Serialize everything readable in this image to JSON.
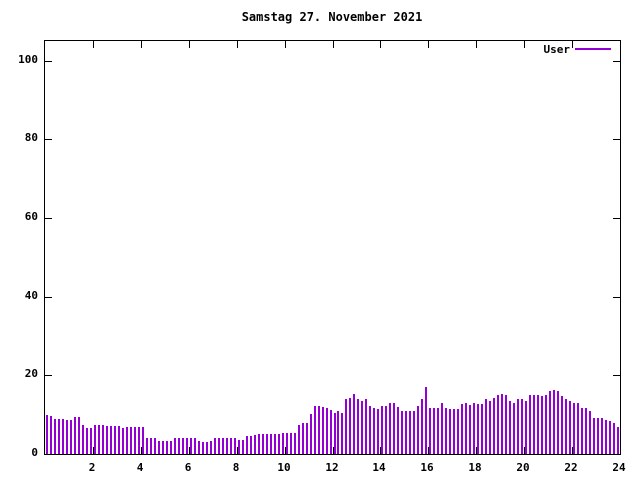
{
  "title": "Samstag 27. November 2021",
  "legend": {
    "label": "User"
  },
  "colors": {
    "bar": "#9400d3",
    "axis": "#000000",
    "background": "#ffffff",
    "text": "#000000"
  },
  "chart_data": {
    "type": "bar",
    "title": "Samstag 27. November 2021",
    "xlabel": "",
    "ylabel": "",
    "xlim": [
      0,
      24
    ],
    "ylim": [
      0,
      105
    ],
    "x_tick_values": [
      2,
      4,
      6,
      8,
      10,
      12,
      14,
      16,
      18,
      20,
      22,
      24
    ],
    "x_tick_labels": [
      "2",
      "4",
      "6",
      "8",
      "10",
      "12",
      "14",
      "16",
      "18",
      "20",
      "22",
      "24"
    ],
    "y_tick_values": [
      0,
      20,
      40,
      60,
      80,
      100
    ],
    "y_tick_labels": [
      "0",
      "20",
      "40",
      "60",
      "80",
      "100"
    ],
    "grid": false,
    "legend_position": "top-right",
    "bar_color": "#9400d3",
    "x_unit": "hour-of-day",
    "sample_interval_minutes": 10,
    "series": [
      {
        "name": "User",
        "values": [
          10.0,
          9.8,
          9.0,
          9.0,
          9.0,
          8.6,
          8.6,
          9.5,
          9.5,
          7.3,
          6.7,
          6.7,
          7.3,
          7.3,
          7.3,
          7.2,
          7.2,
          7.1,
          7.1,
          6.7,
          7.0,
          7.0,
          6.9,
          6.8,
          6.8,
          4.2,
          4.2,
          4.0,
          3.3,
          3.3,
          3.3,
          3.4,
          4.0,
          4.0,
          4.0,
          4.0,
          4.0,
          4.0,
          3.2,
          3.1,
          3.1,
          3.2,
          4.0,
          4.0,
          4.0,
          4.0,
          4.0,
          4.0,
          3.6,
          3.5,
          4.7,
          4.7,
          4.8,
          5.2,
          5.2,
          5.2,
          5.2,
          5.2,
          5.2,
          5.3,
          5.4,
          5.4,
          5.4,
          7.5,
          8.0,
          8.0,
          10.1,
          12.2,
          12.2,
          11.9,
          11.8,
          11.1,
          10.5,
          10.9,
          10.5,
          13.9,
          14.3,
          15.3,
          13.9,
          13.6,
          13.9,
          12.2,
          11.8,
          11.5,
          12.2,
          12.2,
          13.1,
          13.1,
          12.0,
          10.9,
          10.9,
          10.9,
          11.0,
          12.2,
          13.9,
          17.0,
          11.8,
          11.6,
          11.6,
          13.1,
          11.6,
          11.4,
          11.4,
          11.4,
          12.6,
          13.1,
          12.5,
          13.1,
          12.6,
          12.6,
          13.9,
          13.5,
          14.3,
          15.0,
          15.3,
          14.9,
          13.5,
          13.1,
          13.9,
          13.9,
          13.5,
          15.0,
          15.0,
          15.0,
          14.7,
          15.0,
          16.0,
          16.3,
          16.0,
          14.7,
          13.9,
          13.5,
          13.1,
          13.1,
          11.8,
          11.6,
          10.9,
          9.2,
          9.2,
          9.1,
          8.6,
          8.4,
          8.0,
          7.0
        ]
      }
    ]
  }
}
